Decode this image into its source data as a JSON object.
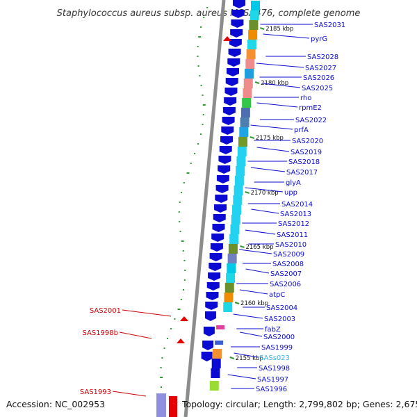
{
  "title": "Staphylococcus aureus subsp. aureus MSSA476, complete genome",
  "footer": {
    "accession": "Accession: NC_002953",
    "topology": "Topology: circular; Length: 2,799,802 bp; Genes: 2,675"
  },
  "colors": {
    "gene_label": "#0a0ad2",
    "rna_label": "#cc0000",
    "small_rna_label": "#38b6e8",
    "forward_arrow": "#0a0ad2",
    "reverse_arrow": "#e80000",
    "backbone": "#8c8c8c",
    "gc_dots": "#2e9a2e"
  },
  "ticks": [
    {
      "label": "2185 kbp"
    },
    {
      "label": "2180 kbp"
    },
    {
      "label": "2175 kbp"
    },
    {
      "label": "2170 kbp"
    },
    {
      "label": "2165 kbp"
    },
    {
      "label": "2160 kbp"
    },
    {
      "label": "2155 kbp"
    }
  ],
  "gene_labels": [
    "SAS2031",
    "pyrG",
    "SAS2028",
    "SAS2027",
    "SAS2026",
    "SAS2025",
    "rho",
    "rpmE2",
    "SAS2022",
    "prfA",
    "SAS2020",
    "SAS2019",
    "SAS2018",
    "SAS2017",
    "glyA",
    "upp",
    "SAS2014",
    "SAS2013",
    "SAS2012",
    "SAS2011",
    "SAS2010",
    "SAS2009",
    "SAS2008",
    "SAS2007",
    "SAS2006",
    "atpC",
    "SAS2004",
    "SAS2003",
    "fabZ",
    "SAS2000",
    "SAS1999",
    "SASs023",
    "SAS1998",
    "SAS1997",
    "SAS1996"
  ],
  "left_labels": [
    "SAS2001",
    "SAS1998b",
    "SAS1993"
  ],
  "legend_icons": [
    "forward-strand-gene-arrow",
    "reverse-strand-rna-arrow",
    "cog-colored-feature-block",
    "gc-content-dot"
  ]
}
